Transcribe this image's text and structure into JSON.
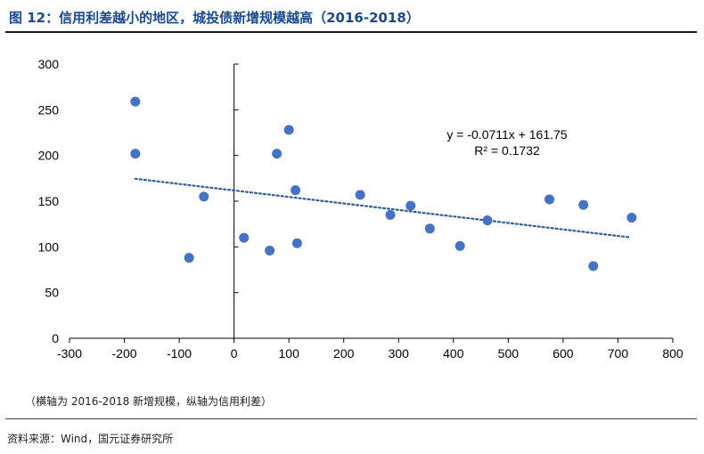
{
  "figure": {
    "title": "图 12：信用利差越小的地区，城投债新增规模越高（2016-2018）",
    "note": "（横轴为 2016-2018 新增规模，纵轴为信用利差）",
    "source": "资料来源：Wind，国元证券研究所"
  },
  "chart_data": {
    "type": "scatter",
    "title": "",
    "xlabel": "",
    "ylabel": "",
    "xlim": [
      -300,
      800
    ],
    "ylim": [
      0,
      300
    ],
    "x_ticks": [
      -300,
      -200,
      -100,
      0,
      100,
      200,
      300,
      400,
      500,
      600,
      700,
      800
    ],
    "y_ticks": [
      0,
      50,
      100,
      150,
      200,
      250,
      300
    ],
    "grid": false,
    "legend": "none",
    "marker_color": "#4472C4",
    "trendline": {
      "type": "linear",
      "slope": -0.0711,
      "intercept": 161.75,
      "x_range": [
        -180,
        720
      ],
      "equation_label": "y = -0.0711x + 161.75",
      "r2_label": "R² = 0.1732",
      "color": "#2E5E9E"
    },
    "series": [
      {
        "points": [
          [
            -180,
            259
          ],
          [
            -180,
            202
          ],
          [
            -82,
            88
          ],
          [
            -55,
            155
          ],
          [
            18,
            110
          ],
          [
            65,
            96
          ],
          [
            78,
            202
          ],
          [
            100,
            228
          ],
          [
            112,
            162
          ],
          [
            115,
            104
          ],
          [
            230,
            157
          ],
          [
            285,
            135
          ],
          [
            322,
            145
          ],
          [
            357,
            120
          ],
          [
            412,
            101
          ],
          [
            462,
            129
          ],
          [
            575,
            152
          ],
          [
            637,
            146
          ],
          [
            655,
            79
          ],
          [
            725,
            132
          ]
        ]
      }
    ]
  }
}
